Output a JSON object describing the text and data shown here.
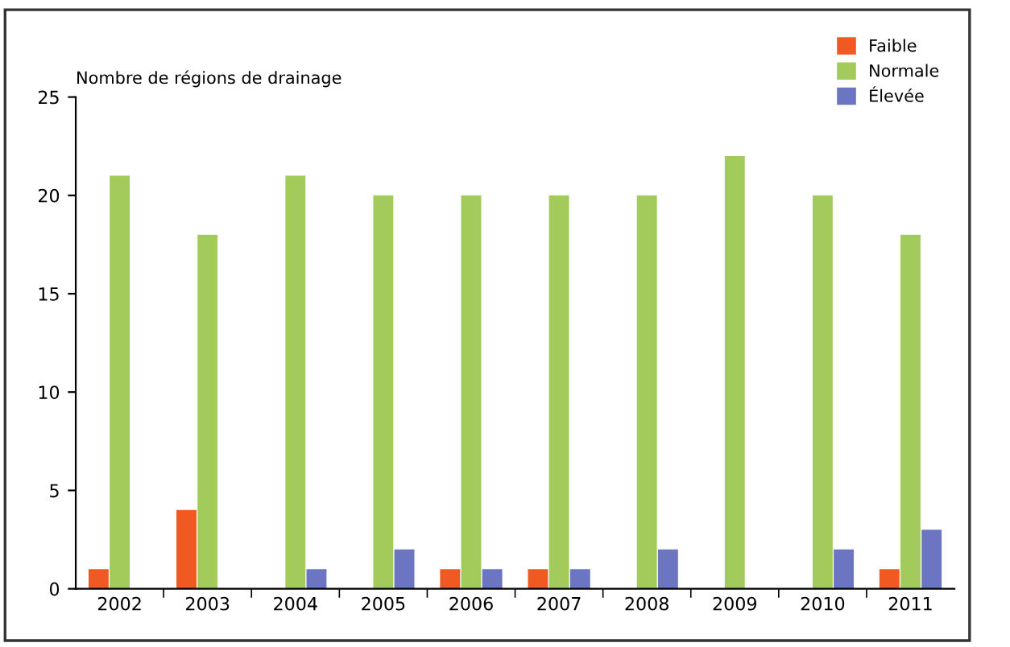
{
  "chart_data": {
    "type": "bar",
    "ylabel": "Nombre de régions de drainage",
    "categories": [
      "2002",
      "2003",
      "2004",
      "2005",
      "2006",
      "2007",
      "2008",
      "2009",
      "2010",
      "2011"
    ],
    "series": [
      {
        "name": "Faible",
        "color": "#f05a22",
        "values": [
          1,
          4,
          0,
          0,
          1,
          1,
          0,
          0,
          0,
          1
        ]
      },
      {
        "name": "Normale",
        "color": "#a3cb5c",
        "values": [
          21,
          18,
          21,
          20,
          20,
          20,
          20,
          22,
          20,
          18
        ]
      },
      {
        "name": "Élevée",
        "color": "#6b75c2",
        "values": [
          0,
          0,
          1,
          2,
          1,
          1,
          2,
          0,
          2,
          3
        ]
      }
    ],
    "ylim": [
      0,
      25
    ],
    "yticks": [
      0,
      5,
      10,
      15,
      20,
      25
    ],
    "grid": false,
    "legend": "top right"
  }
}
